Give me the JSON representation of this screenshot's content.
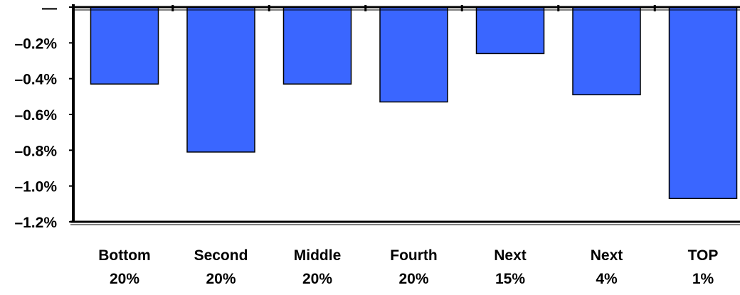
{
  "chart_data": {
    "type": "bar",
    "categories": [
      [
        "Bottom",
        "20%"
      ],
      [
        "Second",
        "20%"
      ],
      [
        "Middle",
        "20%"
      ],
      [
        "Fourth",
        "20%"
      ],
      [
        "Next",
        "15%"
      ],
      [
        "Next",
        "4%"
      ],
      [
        "TOP",
        "1%"
      ]
    ],
    "values": [
      -0.43,
      -0.81,
      -0.43,
      -0.53,
      -0.26,
      -0.49,
      -1.07
    ],
    "y_ticks": [
      {
        "value": 0.0,
        "label": "—"
      },
      {
        "value": -0.2,
        "label": "–0.2%"
      },
      {
        "value": -0.4,
        "label": "–0.4%"
      },
      {
        "value": -0.6,
        "label": "–0.6%"
      },
      {
        "value": -0.8,
        "label": "–0.8%"
      },
      {
        "value": -1.0,
        "label": "–1.0%"
      },
      {
        "value": -1.2,
        "label": "–1.2%"
      }
    ],
    "ylim": [
      -1.2,
      0
    ],
    "grid": false,
    "legend": "none",
    "bar_color": "#3A66FF",
    "axis_color": "#000000"
  }
}
